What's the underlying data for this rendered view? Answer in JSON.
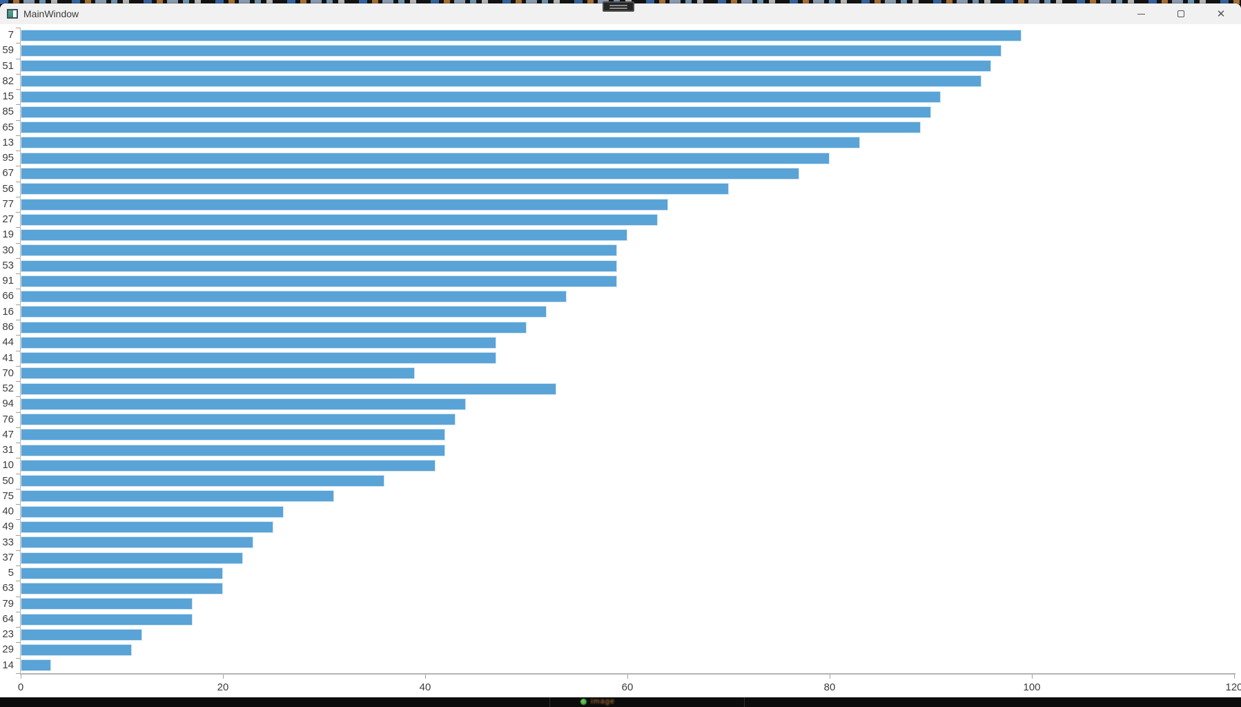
{
  "window": {
    "title": "MainWindow",
    "close_glyph": "✕"
  },
  "chart_data": {
    "type": "bar",
    "orientation": "horizontal",
    "title": "",
    "xlabel": "",
    "ylabel": "",
    "categories": [
      "7",
      "59",
      "51",
      "82",
      "15",
      "85",
      "65",
      "13",
      "95",
      "67",
      "56",
      "77",
      "27",
      "19",
      "30",
      "53",
      "91",
      "66",
      "16",
      "86",
      "44",
      "41",
      "70",
      "52",
      "94",
      "76",
      "47",
      "31",
      "10",
      "50",
      "75",
      "40",
      "49",
      "33",
      "37",
      "5",
      "63",
      "79",
      "64",
      "23",
      "29",
      "14"
    ],
    "values": [
      99,
      97,
      96,
      95,
      91,
      90,
      89,
      83,
      80,
      77,
      70,
      64,
      63,
      60,
      59,
      59,
      59,
      54,
      52,
      50,
      47,
      47,
      39,
      53,
      44,
      43,
      42,
      42,
      41,
      36,
      31,
      26,
      25,
      23,
      22,
      20,
      20,
      17,
      17,
      12,
      11,
      3
    ],
    "xlim": [
      0,
      120
    ],
    "x_ticks": [
      0,
      20,
      40,
      60,
      80,
      100,
      120
    ],
    "grid": false,
    "legend": "none",
    "bar_color": "#5aa3d6",
    "bar_border_color": "#cfe4f4",
    "axis_color": "#b4b4b4",
    "tick_color": "#9e9e9e",
    "label_color": "#3c3c3c"
  },
  "taskbar": {
    "status_text": "image"
  }
}
